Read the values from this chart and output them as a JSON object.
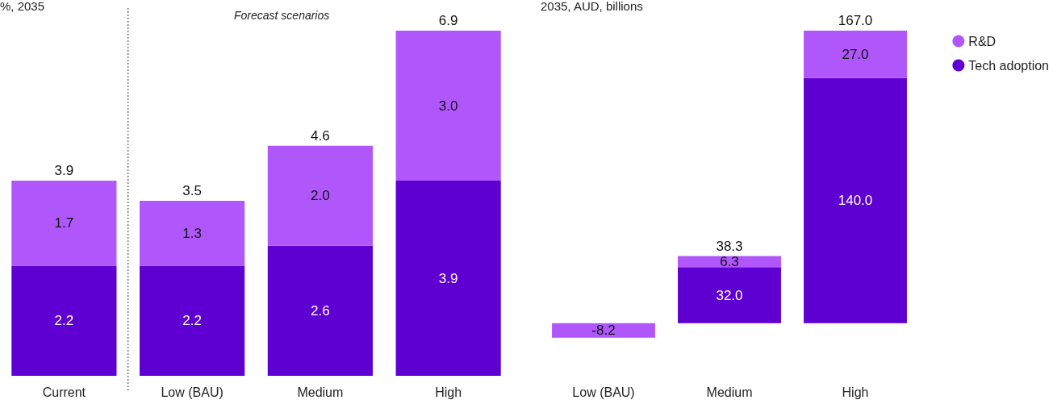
{
  "chart_data": [
    {
      "type": "bar",
      "ylabel": "%, 2035",
      "annotations": [
        "Forecast scenarios"
      ],
      "categories": [
        "Current",
        "Low (BAU)",
        "Medium",
        "High"
      ],
      "stacked": true,
      "tick_labels": "x",
      "grid": false,
      "legend": false,
      "series": [
        {
          "color": "#5e00d1",
          "values": [
            2.2,
            2.2,
            2.6,
            3.9
          ],
          "value_labels": [
            "2.2",
            "2.2",
            "2.6",
            "3.9"
          ]
        },
        {
          "color": "#b057fc",
          "values": [
            1.7,
            1.3,
            2.0,
            3.0
          ],
          "value_labels": [
            "1.7",
            "1.3",
            "2.0",
            "3.0"
          ]
        }
      ],
      "totals": [
        "3.9",
        "3.5",
        "4.6",
        "6.9"
      ]
    },
    {
      "type": "bar",
      "ylabel": "2035, AUD, billions",
      "categories": [
        "Low (BAU)",
        "Medium",
        "High"
      ],
      "stacked": true,
      "tick_labels": "x",
      "grid": false,
      "legend": "top right",
      "series": [
        {
          "name": "Tech adoption",
          "color": "#5e00d1",
          "values": [
            null,
            32.0,
            140.0
          ],
          "value_labels": [
            null,
            "32.0",
            "140.0"
          ]
        },
        {
          "name": "R&D",
          "color": "#b057fc",
          "values": [
            -8.2,
            6.3,
            27.0
          ],
          "value_labels": [
            "-8.2",
            "6.3",
            "27.0"
          ]
        }
      ],
      "totals": [
        null,
        "38.3",
        "167.0"
      ]
    }
  ]
}
